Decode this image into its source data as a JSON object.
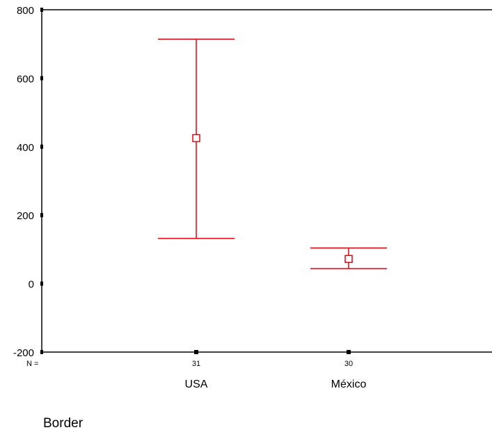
{
  "chart_data": {
    "type": "errorbar",
    "title": "",
    "xlabel": "Border",
    "ylabel": "",
    "ylim": [
      -200,
      800
    ],
    "yticks": [
      -200,
      0,
      200,
      400,
      600,
      800
    ],
    "n_label": "N =",
    "categories": [
      "USA",
      "México"
    ],
    "n": [
      "31",
      "30"
    ],
    "mean": [
      425,
      72
    ],
    "lower": [
      132,
      44
    ],
    "upper": [
      714,
      104
    ],
    "color": "#e8000b",
    "axis_color": "#000000"
  }
}
